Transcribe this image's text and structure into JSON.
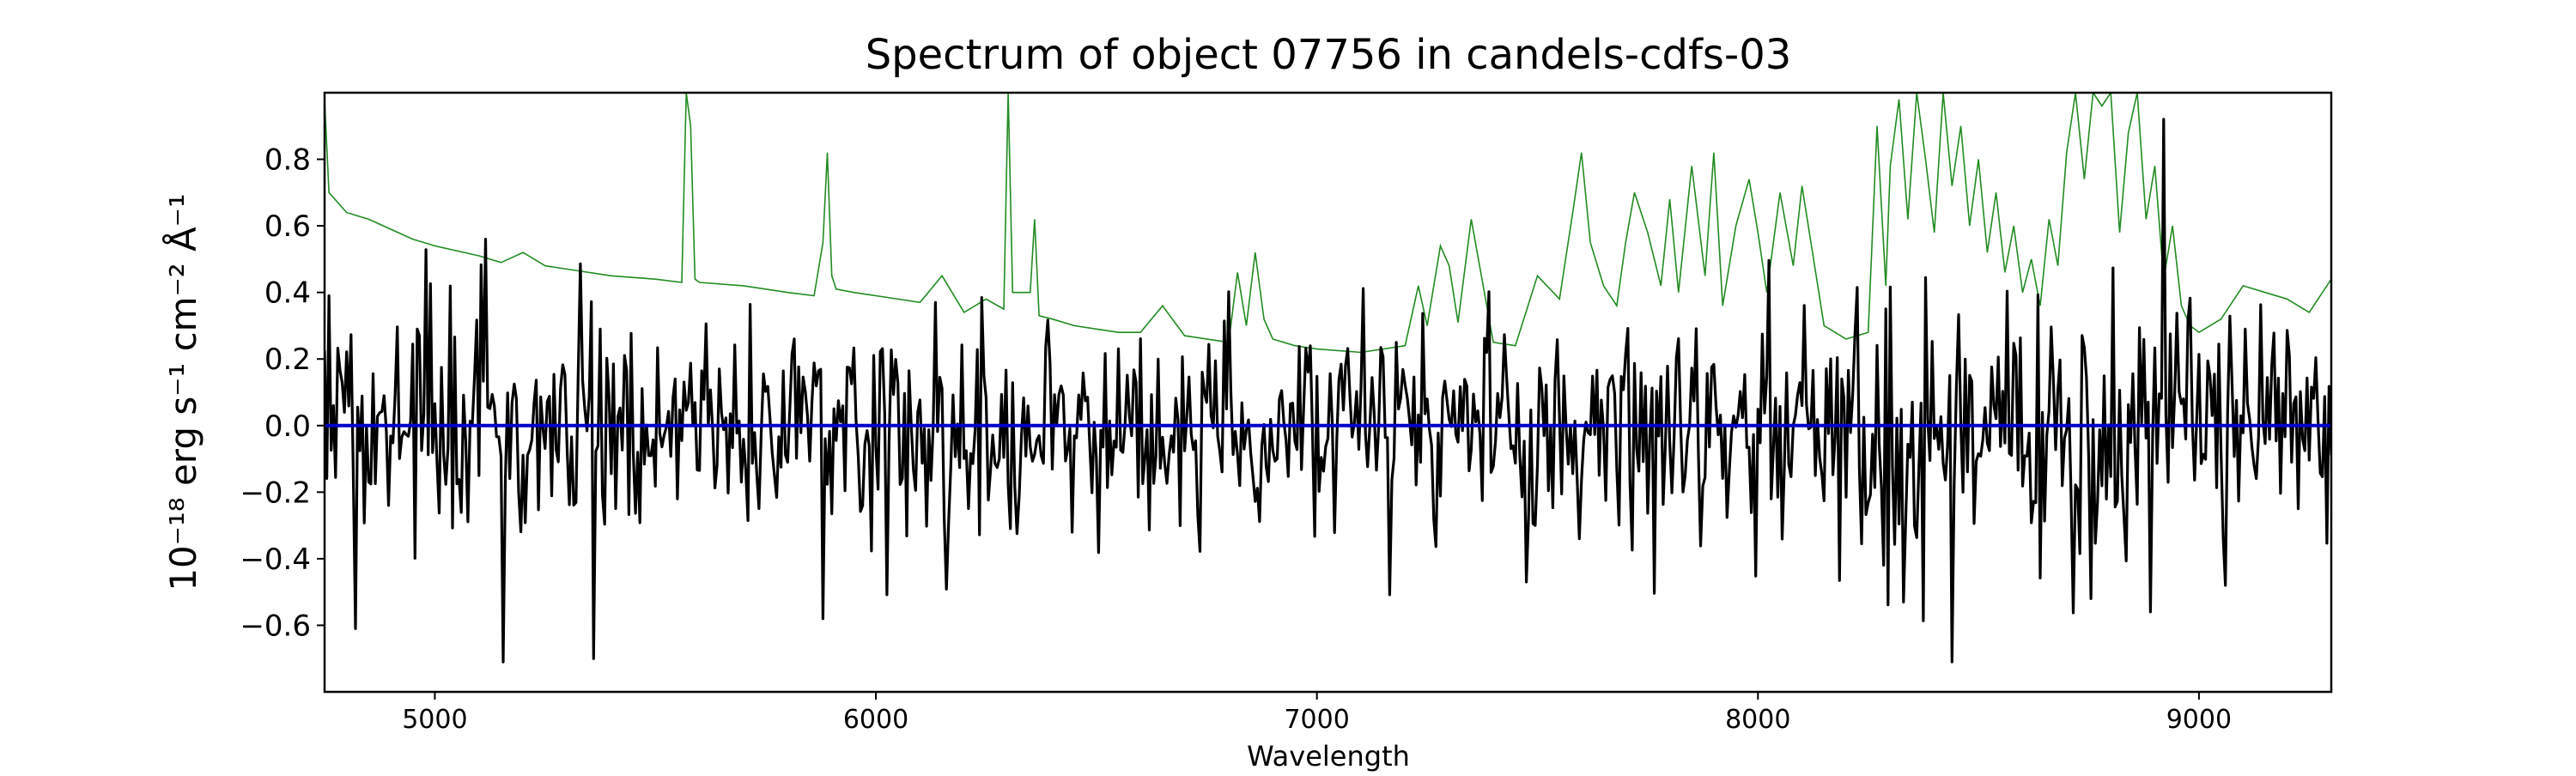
{
  "chart_data": {
    "type": "line",
    "title": "Spectrum of object 07756 in candels-cdfs-03",
    "xlabel": "Wavelength",
    "ylabel": "10⁻¹⁸ erg s⁻¹ cm⁻² Å⁻¹",
    "xlim": [
      4750,
      9300
    ],
    "ylim": [
      -0.8,
      1.0
    ],
    "xticks": [
      5000,
      6000,
      7000,
      8000,
      9000
    ],
    "yticks": [
      -0.6,
      -0.4,
      -0.2,
      0.0,
      0.2,
      0.4,
      0.6,
      0.8
    ],
    "ytick_labels": [
      "−0.6",
      "−0.4",
      "−0.2",
      "0.0",
      "0.2",
      "0.4",
      "0.6",
      "0.8"
    ],
    "grid": false,
    "legend": "none",
    "series": [
      {
        "id": "noise",
        "color": "#228b22",
        "x": [
          4750,
          4760,
          4800,
          4850,
          4900,
          4950,
          5000,
          5100,
          5150,
          5200,
          5250,
          5300,
          5400,
          5500,
          5560,
          5570,
          5580,
          5590,
          5600,
          5700,
          5800,
          5860,
          5880,
          5890,
          5900,
          5910,
          5950,
          6000,
          6100,
          6150,
          6200,
          6250,
          6290,
          6300,
          6310,
          6350,
          6360,
          6370,
          6400,
          6450,
          6500,
          6550,
          6600,
          6650,
          6700,
          6800,
          6820,
          6840,
          6860,
          6880,
          6900,
          6950,
          7000,
          7100,
          7200,
          7230,
          7250,
          7280,
          7300,
          7320,
          7350,
          7400,
          7450,
          7500,
          7550,
          7580,
          7600,
          7620,
          7650,
          7680,
          7700,
          7720,
          7750,
          7780,
          7800,
          7820,
          7850,
          7880,
          7900,
          7920,
          7950,
          7980,
          8000,
          8020,
          8050,
          8080,
          8100,
          8150,
          8200,
          8250,
          8270,
          8290,
          8300,
          8320,
          8340,
          8360,
          8380,
          8400,
          8420,
          8440,
          8460,
          8480,
          8500,
          8520,
          8540,
          8560,
          8580,
          8600,
          8620,
          8640,
          8660,
          8680,
          8700,
          8720,
          8740,
          8760,
          8780,
          8800,
          8820,
          8840,
          8860,
          8880,
          8900,
          8920,
          8940,
          8960,
          8980,
          9000,
          9050,
          9100,
          9150,
          9200,
          9250,
          9300
        ],
        "y": [
          0.98,
          0.7,
          0.64,
          0.62,
          0.59,
          0.56,
          0.54,
          0.51,
          0.49,
          0.52,
          0.48,
          0.47,
          0.45,
          0.44,
          0.43,
          1.0,
          0.9,
          0.44,
          0.43,
          0.42,
          0.4,
          0.39,
          0.55,
          0.82,
          0.45,
          0.41,
          0.4,
          0.39,
          0.37,
          0.45,
          0.34,
          0.38,
          0.35,
          1.0,
          0.4,
          0.4,
          0.62,
          0.33,
          0.32,
          0.3,
          0.29,
          0.28,
          0.28,
          0.36,
          0.27,
          0.25,
          0.46,
          0.3,
          0.52,
          0.32,
          0.26,
          0.24,
          0.23,
          0.22,
          0.24,
          0.42,
          0.3,
          0.54,
          0.48,
          0.31,
          0.62,
          0.25,
          0.24,
          0.45,
          0.38,
          0.64,
          0.82,
          0.55,
          0.42,
          0.36,
          0.55,
          0.7,
          0.58,
          0.42,
          0.68,
          0.4,
          0.78,
          0.45,
          0.82,
          0.36,
          0.6,
          0.74,
          0.58,
          0.4,
          0.7,
          0.48,
          0.72,
          0.3,
          0.26,
          0.28,
          0.9,
          0.42,
          0.78,
          0.98,
          0.62,
          1.0,
          0.8,
          0.58,
          1.0,
          0.72,
          0.9,
          0.6,
          0.8,
          0.52,
          0.7,
          0.46,
          0.6,
          0.4,
          0.5,
          0.36,
          0.62,
          0.48,
          0.82,
          1.0,
          0.74,
          1.0,
          0.96,
          1.0,
          0.58,
          0.88,
          1.0,
          0.62,
          0.78,
          0.44,
          0.6,
          0.36,
          0.3,
          0.28,
          0.32,
          0.42,
          0.4,
          0.38,
          0.34,
          0.44
        ]
      },
      {
        "id": "flux",
        "color": "#000000",
        "seed": 7756,
        "x_step": 5,
        "scatter_x": [
          4750,
          5000,
          5500,
          6000,
          6500,
          7000,
          7500,
          8000,
          8300,
          8500,
          8800,
          9000,
          9300
        ],
        "scatter_y": [
          0.18,
          0.19,
          0.18,
          0.17,
          0.16,
          0.15,
          0.16,
          0.18,
          0.25,
          0.2,
          0.24,
          0.18,
          0.17
        ],
        "labeled_x": [
          4760,
          4820,
          5115,
          5155,
          5360,
          5880,
          6135,
          7475,
          8440,
          8755,
          8890,
          8920
        ],
        "labeled_y": [
          0.39,
          -0.61,
          0.56,
          -0.71,
          -0.7,
          -0.58,
          0.37,
          -0.47,
          -0.71,
          -0.52,
          -0.56,
          0.92
        ]
      },
      {
        "id": "model",
        "color": "#0000cc",
        "x": [
          4750,
          9300
        ],
        "y": [
          0.0,
          0.0
        ]
      }
    ]
  }
}
